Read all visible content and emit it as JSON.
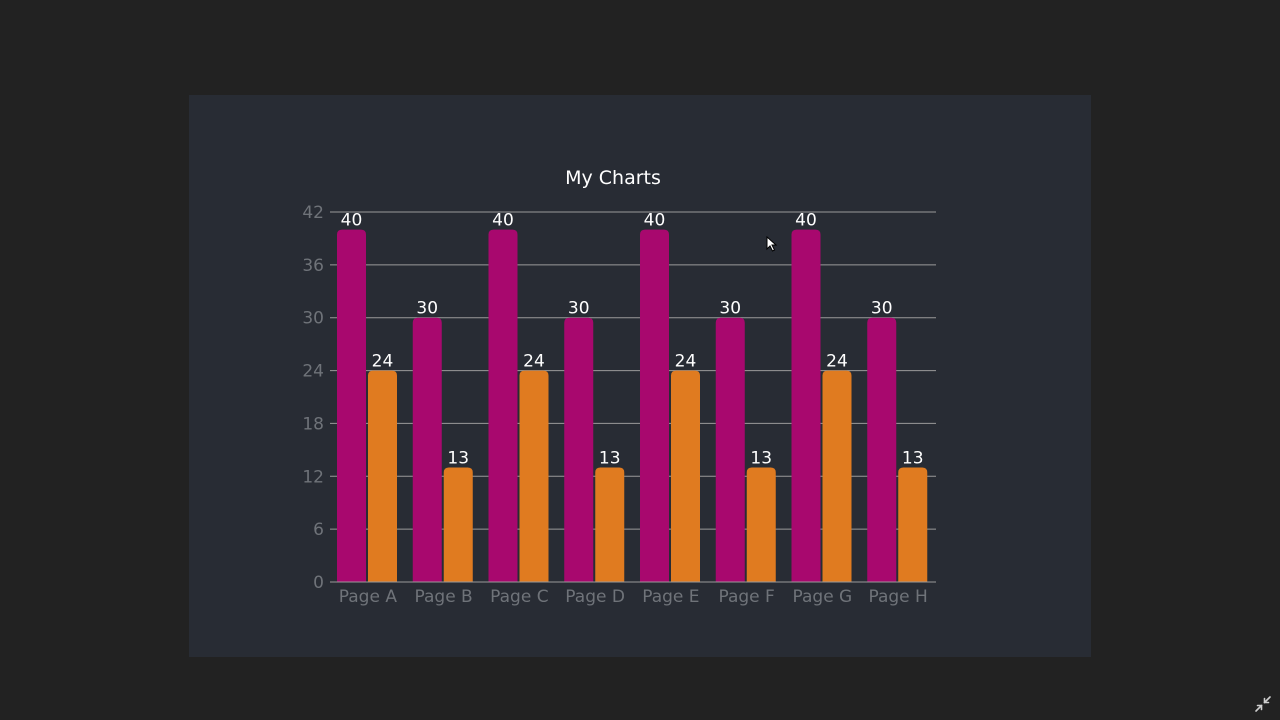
{
  "chart_data": {
    "type": "bar",
    "title": "My Charts",
    "categories": [
      "Page A",
      "Page B",
      "Page C",
      "Page D",
      "Page E",
      "Page F",
      "Page G",
      "Page H"
    ],
    "series": [
      {
        "values": [
          40,
          30,
          40,
          30,
          40,
          30,
          40,
          30
        ],
        "color": "#a8086e"
      },
      {
        "values": [
          24,
          13,
          24,
          13,
          24,
          13,
          24,
          13
        ],
        "color": "#e07b20"
      }
    ],
    "yticks": [
      0,
      6,
      12,
      18,
      24,
      30,
      36,
      42
    ],
    "ylim": [
      0,
      42
    ],
    "grid": true,
    "legend": "none",
    "data_labels": true
  },
  "icons": {
    "cursor": "mouse-pointer-icon",
    "exit_fullscreen": "exit-fullscreen-icon"
  },
  "colors": {
    "page_background": "#222222",
    "panel_background": "#282c34",
    "gridline": "#9a9a9a",
    "tick_label": "#6f7379",
    "title_text": "#ffffff",
    "data_label": "#ffffff"
  }
}
